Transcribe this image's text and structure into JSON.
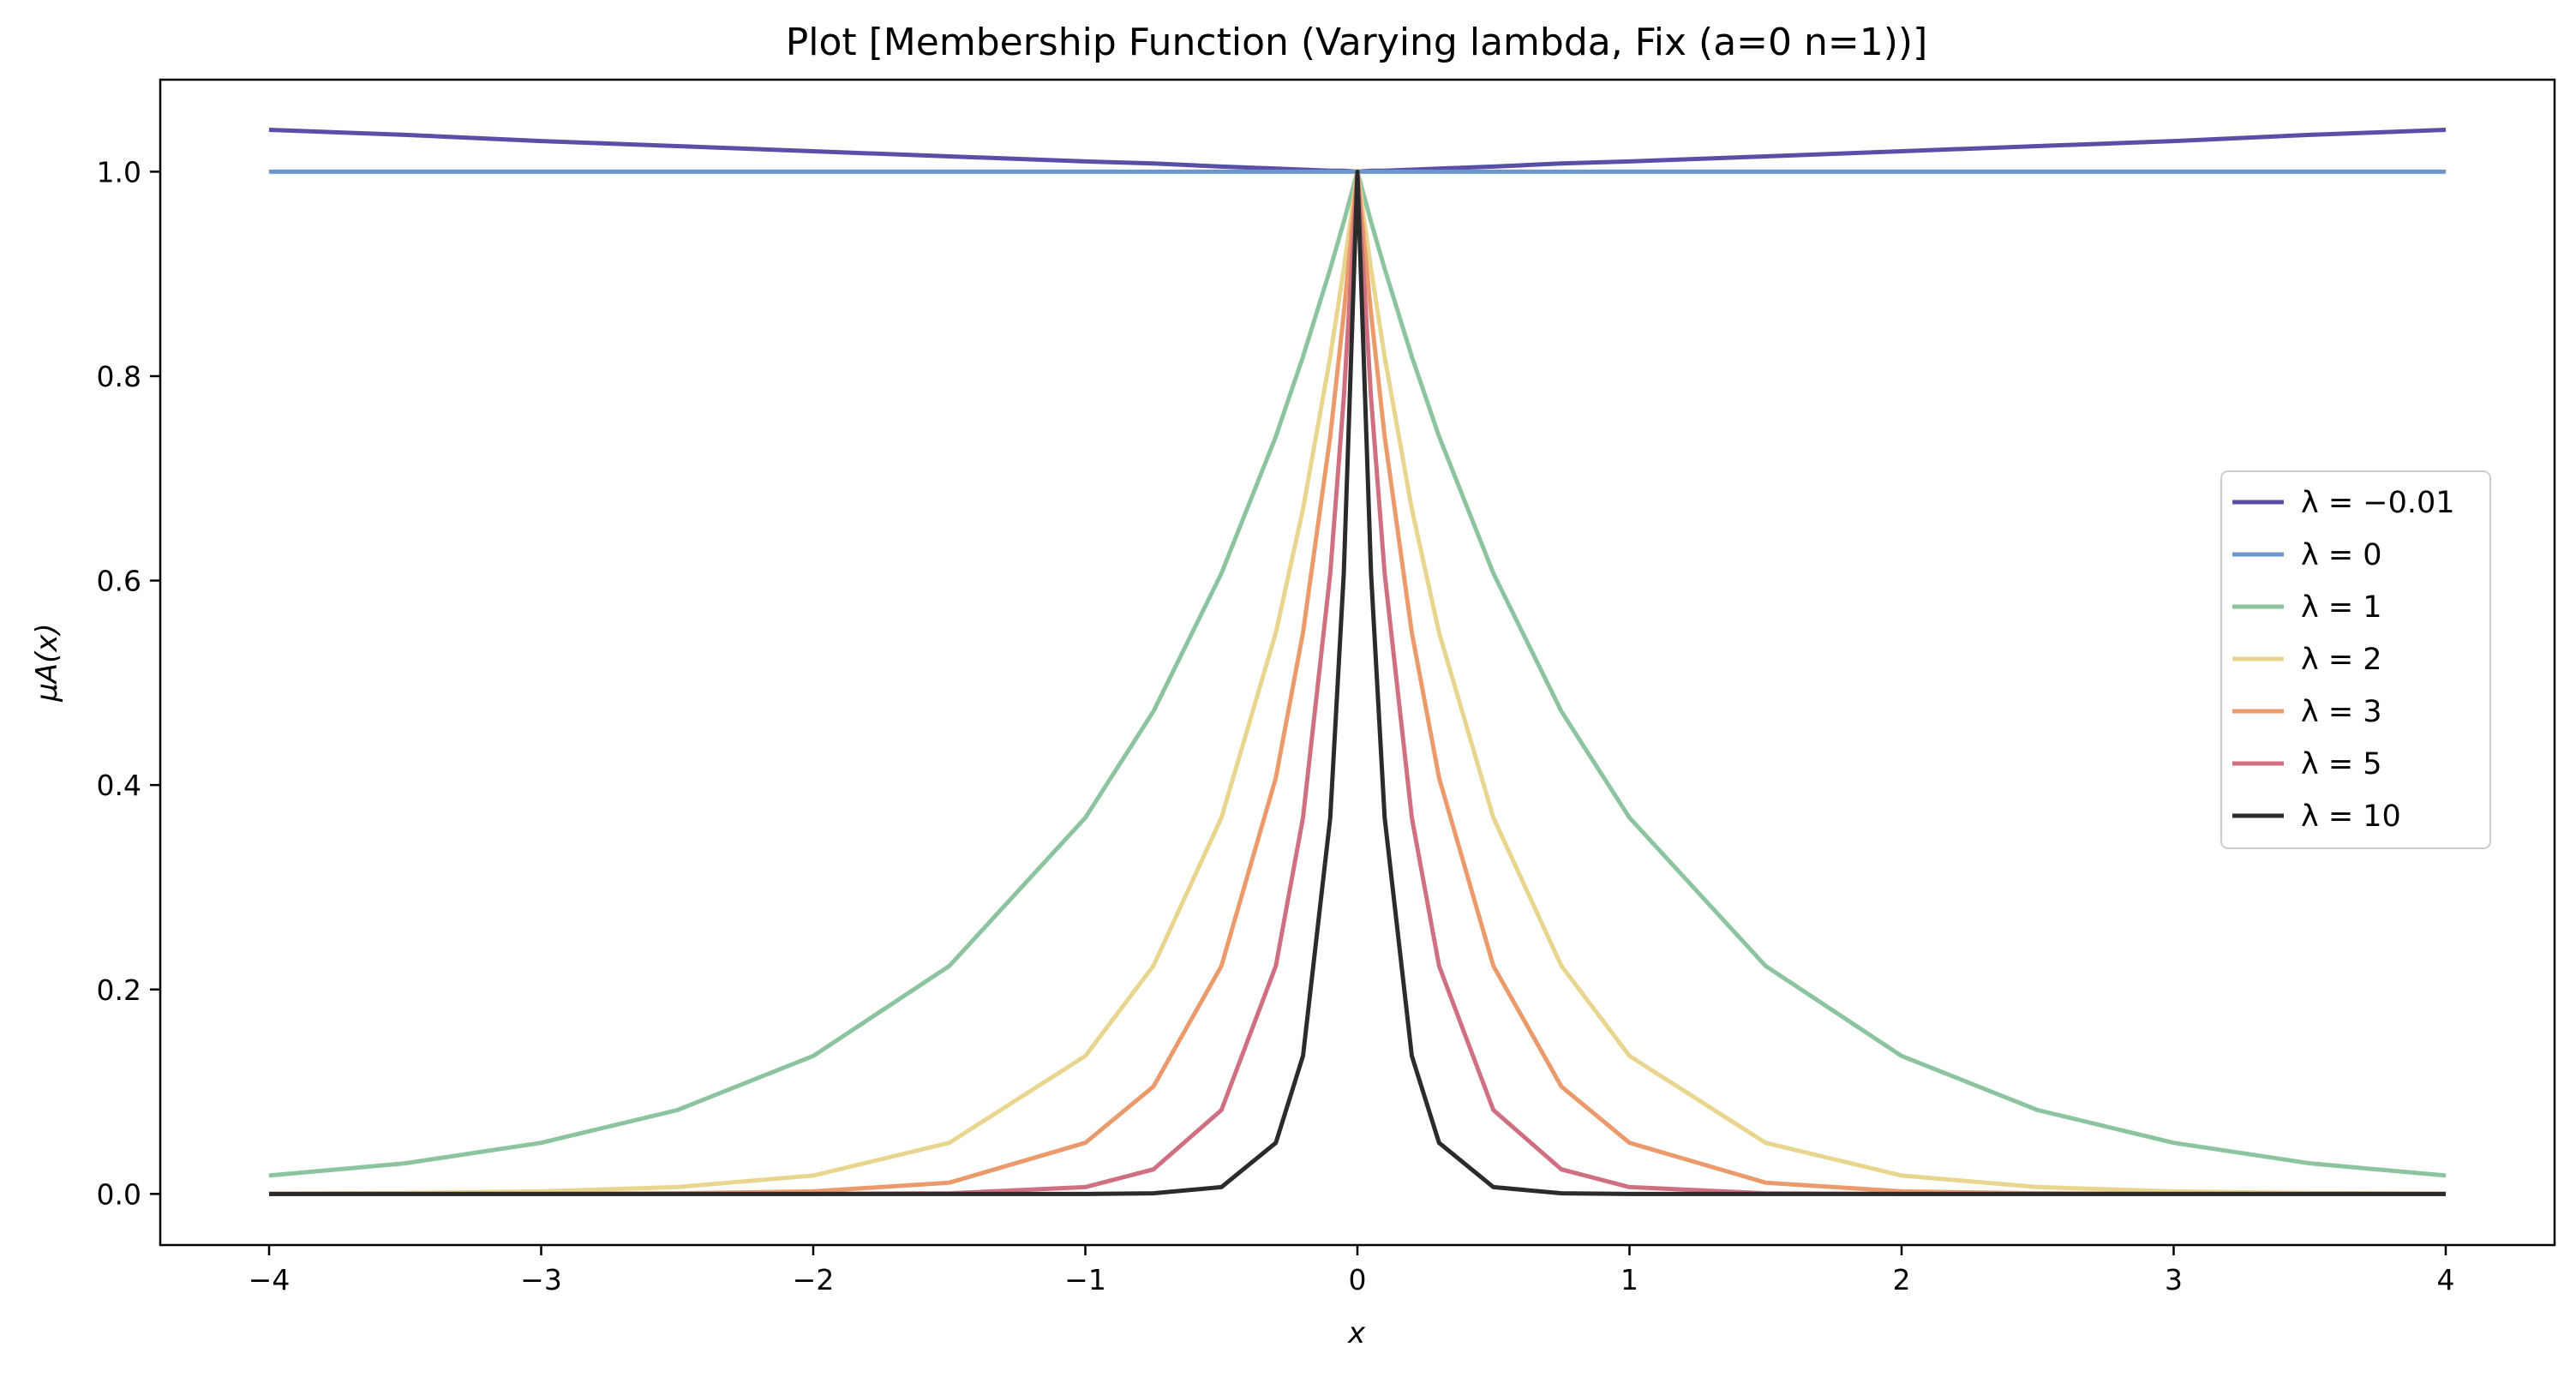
{
  "chart_data": {
    "type": "line",
    "title": "Plot [Membership Function (Varying lambda, Fix (a=0 n=1))]",
    "xlabel": "x",
    "ylabel": "μA(x)",
    "xlim": [
      -4.4,
      4.4
    ],
    "ylim": [
      -0.05,
      1.09
    ],
    "x_ticks": [
      -4,
      -3,
      -2,
      -1,
      0,
      1,
      2,
      3,
      4
    ],
    "x_tick_labels": [
      "−4",
      "−3",
      "−2",
      "−1",
      "0",
      "1",
      "2",
      "3",
      "4"
    ],
    "y_ticks": [
      0.0,
      0.2,
      0.4,
      0.6,
      0.8,
      1.0
    ],
    "y_tick_labels": [
      "0.0",
      "0.2",
      "0.4",
      "0.6",
      "0.8",
      "1.0"
    ],
    "grid": false,
    "legend_position": "center-right",
    "x": [
      -4,
      -3.5,
      -3,
      -2.5,
      -2,
      -1.5,
      -1,
      -0.75,
      -0.5,
      -0.3,
      -0.2,
      -0.1,
      -0.05,
      0,
      0.05,
      0.1,
      0.2,
      0.3,
      0.5,
      0.75,
      1,
      1.5,
      2,
      2.5,
      3,
      3.5,
      4
    ],
    "series": [
      {
        "name": "λ = −0.01",
        "color": "#5b4ea6",
        "values": [
          1.041,
          1.036,
          1.03,
          1.025,
          1.02,
          1.015,
          1.01,
          1.008,
          1.005,
          1.003,
          1.002,
          1.001,
          1.001,
          1.0,
          1.001,
          1.001,
          1.002,
          1.003,
          1.005,
          1.008,
          1.01,
          1.015,
          1.02,
          1.025,
          1.03,
          1.036,
          1.041
        ]
      },
      {
        "name": "λ = 0",
        "color": "#6b97cc",
        "values": [
          1.0,
          1.0,
          1.0,
          1.0,
          1.0,
          1.0,
          1.0,
          1.0,
          1.0,
          1.0,
          1.0,
          1.0,
          1.0,
          1.0,
          1.0,
          1.0,
          1.0,
          1.0,
          1.0,
          1.0,
          1.0,
          1.0,
          1.0,
          1.0,
          1.0,
          1.0,
          1.0
        ]
      },
      {
        "name": "λ = 1",
        "color": "#8cc49f",
        "values": [
          0.018,
          0.03,
          0.05,
          0.082,
          0.135,
          0.223,
          0.368,
          0.472,
          0.607,
          0.741,
          0.819,
          0.905,
          0.951,
          1.0,
          0.951,
          0.905,
          0.819,
          0.741,
          0.607,
          0.472,
          0.368,
          0.223,
          0.135,
          0.082,
          0.05,
          0.03,
          0.018
        ]
      },
      {
        "name": "λ = 2",
        "color": "#e8d68f",
        "values": [
          0.0003,
          0.0009,
          0.0025,
          0.0067,
          0.018,
          0.05,
          0.135,
          0.223,
          0.368,
          0.549,
          0.67,
          0.819,
          0.905,
          1.0,
          0.905,
          0.819,
          0.67,
          0.549,
          0.368,
          0.223,
          0.135,
          0.05,
          0.018,
          0.0067,
          0.0025,
          0.0009,
          0.0003
        ]
      },
      {
        "name": "λ = 3",
        "color": "#eb9a6c",
        "values": [
          0.0,
          0.0,
          0.0001,
          0.0006,
          0.0025,
          0.011,
          0.05,
          0.105,
          0.223,
          0.407,
          0.549,
          0.741,
          0.861,
          1.0,
          0.861,
          0.741,
          0.549,
          0.407,
          0.223,
          0.105,
          0.05,
          0.011,
          0.0025,
          0.0006,
          0.0001,
          0.0,
          0.0
        ]
      },
      {
        "name": "λ = 5",
        "color": "#cf7080",
        "values": [
          0.0,
          0.0,
          0.0,
          0.0,
          0.0,
          0.0006,
          0.0067,
          0.024,
          0.082,
          0.223,
          0.368,
          0.607,
          0.779,
          1.0,
          0.779,
          0.607,
          0.368,
          0.223,
          0.082,
          0.024,
          0.0067,
          0.0006,
          0.0,
          0.0,
          0.0,
          0.0,
          0.0
        ]
      },
      {
        "name": "λ = 10",
        "color": "#2b2b2b",
        "values": [
          0.0,
          0.0,
          0.0,
          0.0,
          0.0,
          0.0,
          0.0,
          0.0006,
          0.0067,
          0.05,
          0.135,
          0.368,
          0.607,
          1.0,
          0.607,
          0.368,
          0.135,
          0.05,
          0.0067,
          0.0006,
          0.0,
          0.0,
          0.0,
          0.0,
          0.0,
          0.0,
          0.0
        ]
      }
    ]
  }
}
